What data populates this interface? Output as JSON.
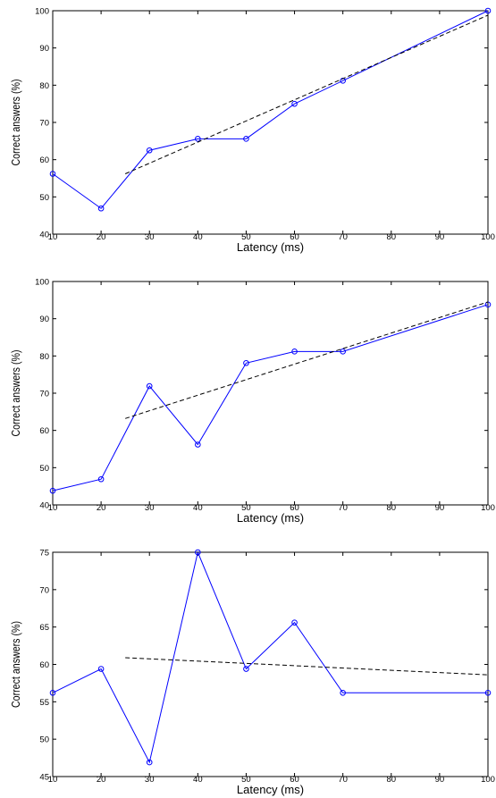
{
  "chart_data": [
    {
      "type": "line",
      "xlabel": "Latency (ms)",
      "ylabel": "Correct answers (%)",
      "xlim": [
        10,
        100
      ],
      "ylim": [
        40,
        100
      ],
      "xticks": [
        10,
        20,
        30,
        40,
        50,
        60,
        70,
        80,
        90,
        100
      ],
      "yticks": [
        40,
        50,
        60,
        70,
        80,
        90,
        100
      ],
      "grid": false,
      "series": [
        {
          "style": "solid-markers",
          "color": "#0000ff",
          "x": [
            10,
            20,
            30,
            40,
            50,
            60,
            70,
            100
          ],
          "y": [
            56.2,
            46.9,
            62.5,
            65.6,
            65.6,
            75.0,
            81.2,
            100.0
          ]
        },
        {
          "style": "dashed-fit",
          "color": "#000000",
          "x": [
            25,
            100
          ],
          "y": [
            56.2,
            98.8
          ]
        }
      ]
    },
    {
      "type": "line",
      "xlabel": "Latency (ms)",
      "ylabel": "Correct answers (%)",
      "xlim": [
        10,
        100
      ],
      "ylim": [
        40,
        100
      ],
      "xticks": [
        10,
        20,
        30,
        40,
        50,
        60,
        70,
        80,
        90,
        100
      ],
      "yticks": [
        40,
        50,
        60,
        70,
        80,
        90,
        100
      ],
      "grid": false,
      "series": [
        {
          "style": "solid-markers",
          "color": "#0000ff",
          "x": [
            10,
            20,
            30,
            40,
            50,
            60,
            70,
            100
          ],
          "y": [
            43.8,
            46.9,
            71.9,
            56.2,
            78.1,
            81.2,
            81.2,
            93.8
          ]
        },
        {
          "style": "dashed-fit",
          "color": "#000000",
          "x": [
            25,
            100
          ],
          "y": [
            63.2,
            94.5
          ]
        }
      ]
    },
    {
      "type": "line",
      "xlabel": "Latency (ms)",
      "ylabel": "Correct answers (%)",
      "xlim": [
        10,
        100
      ],
      "ylim": [
        45,
        75
      ],
      "xticks": [
        10,
        20,
        30,
        40,
        50,
        60,
        70,
        80,
        90,
        100
      ],
      "yticks": [
        45,
        50,
        55,
        60,
        65,
        70,
        75
      ],
      "grid": false,
      "series": [
        {
          "style": "solid-markers",
          "color": "#0000ff",
          "x": [
            10,
            20,
            30,
            40,
            50,
            60,
            70,
            100
          ],
          "y": [
            56.2,
            59.4,
            46.9,
            75.0,
            59.4,
            65.6,
            56.2,
            56.2
          ]
        },
        {
          "style": "dashed-fit",
          "color": "#000000",
          "x": [
            25,
            100
          ],
          "y": [
            60.9,
            58.6
          ]
        }
      ]
    }
  ]
}
